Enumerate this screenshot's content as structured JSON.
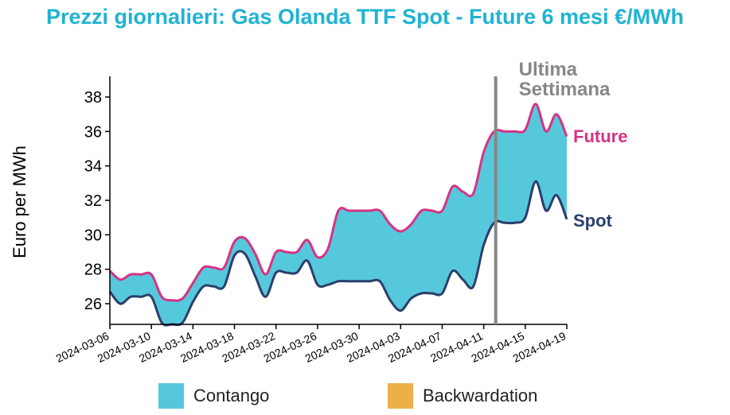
{
  "chart_data": {
    "type": "area",
    "title": "Prezzi giornalieri: Gas Olanda TTF Spot - Future 6 mesi €/MWh",
    "ylabel": "Euro per MWh",
    "xlabel": "",
    "ylim": [
      24.8,
      39.2
    ],
    "yticks": [
      26,
      28,
      30,
      32,
      34,
      36,
      38
    ],
    "xlim": [
      "2024-03-06",
      "2024-04-19"
    ],
    "xticks": [
      "2024-03-06",
      "2024-03-10",
      "2024-03-14",
      "2024-03-18",
      "2024-03-22",
      "2024-03-26",
      "2024-03-30",
      "2024-04-03",
      "2024-04-07",
      "2024-04-11",
      "2024-04-15",
      "2024-04-19"
    ],
    "x": [
      "2024-03-06",
      "2024-03-07",
      "2024-03-08",
      "2024-03-09",
      "2024-03-10",
      "2024-03-11",
      "2024-03-12",
      "2024-03-13",
      "2024-03-14",
      "2024-03-15",
      "2024-03-16",
      "2024-03-17",
      "2024-03-18",
      "2024-03-19",
      "2024-03-20",
      "2024-03-21",
      "2024-03-22",
      "2024-03-23",
      "2024-03-24",
      "2024-03-25",
      "2024-03-26",
      "2024-03-27",
      "2024-03-28",
      "2024-03-29",
      "2024-03-30",
      "2024-03-31",
      "2024-04-01",
      "2024-04-02",
      "2024-04-03",
      "2024-04-04",
      "2024-04-05",
      "2024-04-06",
      "2024-04-07",
      "2024-04-08",
      "2024-04-09",
      "2024-04-10",
      "2024-04-11",
      "2024-04-12",
      "2024-04-13",
      "2024-04-14",
      "2024-04-15",
      "2024-04-16",
      "2024-04-17",
      "2024-04-18",
      "2024-04-19"
    ],
    "series": [
      {
        "name": "Future",
        "color": "#d63384",
        "values": [
          27.9,
          27.4,
          27.7,
          27.7,
          27.7,
          26.4,
          26.2,
          26.3,
          27.2,
          28.1,
          28.1,
          28.1,
          29.6,
          29.8,
          28.9,
          27.7,
          29.0,
          29.0,
          29.0,
          29.7,
          28.7,
          29.2,
          31.4,
          31.4,
          31.4,
          31.4,
          31.4,
          30.6,
          30.2,
          30.6,
          31.4,
          31.4,
          31.4,
          32.8,
          32.5,
          32.4,
          34.8,
          36.0,
          36.0,
          36.0,
          36.1,
          37.6,
          36.0,
          37.0,
          35.7
        ]
      },
      {
        "name": "Spot",
        "color": "#2a3f6b",
        "values": [
          26.7,
          26.0,
          26.4,
          26.4,
          26.4,
          24.9,
          24.8,
          24.9,
          26.1,
          27.0,
          27.0,
          27.0,
          28.8,
          28.9,
          27.6,
          26.4,
          27.8,
          27.8,
          27.8,
          28.5,
          27.1,
          27.1,
          27.3,
          27.3,
          27.3,
          27.3,
          27.3,
          26.2,
          25.6,
          26.3,
          26.6,
          26.6,
          26.6,
          27.9,
          27.4,
          27.0,
          29.4,
          30.7,
          30.7,
          30.7,
          31.0,
          33.1,
          31.4,
          32.3,
          30.9
        ]
      }
    ],
    "legend": [
      {
        "label": "Contango",
        "color": "#56c8dc"
      },
      {
        "label": "Backwardation",
        "color": "#ebb04a"
      }
    ],
    "annotation": {
      "text_line1": "Ultima",
      "text_line2": "Settimana",
      "x": "2024-04-12",
      "color": "#878787"
    },
    "fill_color": "#56c8dc"
  }
}
